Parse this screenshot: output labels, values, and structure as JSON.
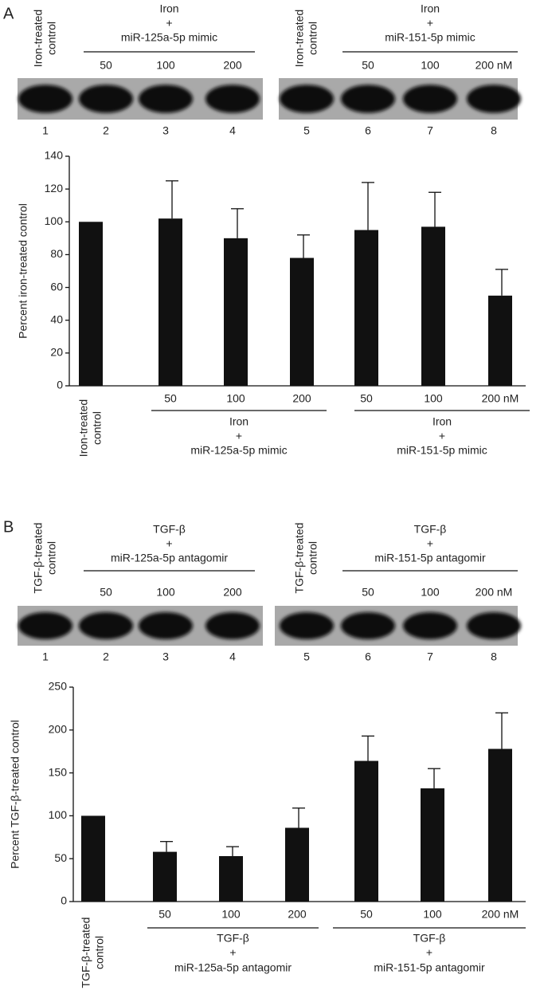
{
  "chart_data": [
    {
      "type": "bar",
      "panel_label": "A",
      "y_label": "Percent iron-treated control",
      "categories": [
        "Iron-treated control",
        "50",
        "100",
        "200",
        "50",
        "100",
        "200 nM"
      ],
      "values": [
        100,
        102,
        90,
        78,
        95,
        97,
        55
      ],
      "errors": [
        null,
        23,
        18,
        14,
        29,
        21,
        16
      ],
      "color": "#111111",
      "ylim": [
        0,
        140
      ],
      "yticks": [
        0,
        20,
        40,
        60,
        80,
        100,
        120,
        140
      ],
      "groups": [
        [
          "Iron",
          "+",
          "miR-125a-5p mimic"
        ],
        [
          "Iron",
          "+",
          "miR-151-5p mimic"
        ]
      ],
      "blot_lanes": [
        "1",
        "2",
        "3",
        "4",
        "5",
        "6",
        "7",
        "8"
      ]
    },
    {
      "type": "bar",
      "panel_label": "B",
      "y_label": "Percent TGF-β-treated control",
      "categories": [
        "TGF-β-treated control",
        "50",
        "100",
        "200",
        "50",
        "100",
        "200 nM"
      ],
      "values": [
        100,
        58,
        53,
        86,
        164,
        132,
        178
      ],
      "errors": [
        null,
        12,
        11,
        23,
        29,
        23,
        42
      ],
      "color": "#111111",
      "ylim": [
        0,
        250
      ],
      "yticks": [
        0,
        50,
        100,
        150,
        200,
        250
      ],
      "groups": [
        [
          "TGF-β",
          "+",
          "miR-125a-5p antagomir"
        ],
        [
          "TGF-β",
          "+",
          "miR-151-5p antagomir"
        ]
      ],
      "blot_lanes": [
        "1",
        "2",
        "3",
        "4",
        "5",
        "6",
        "7",
        "8"
      ]
    }
  ]
}
